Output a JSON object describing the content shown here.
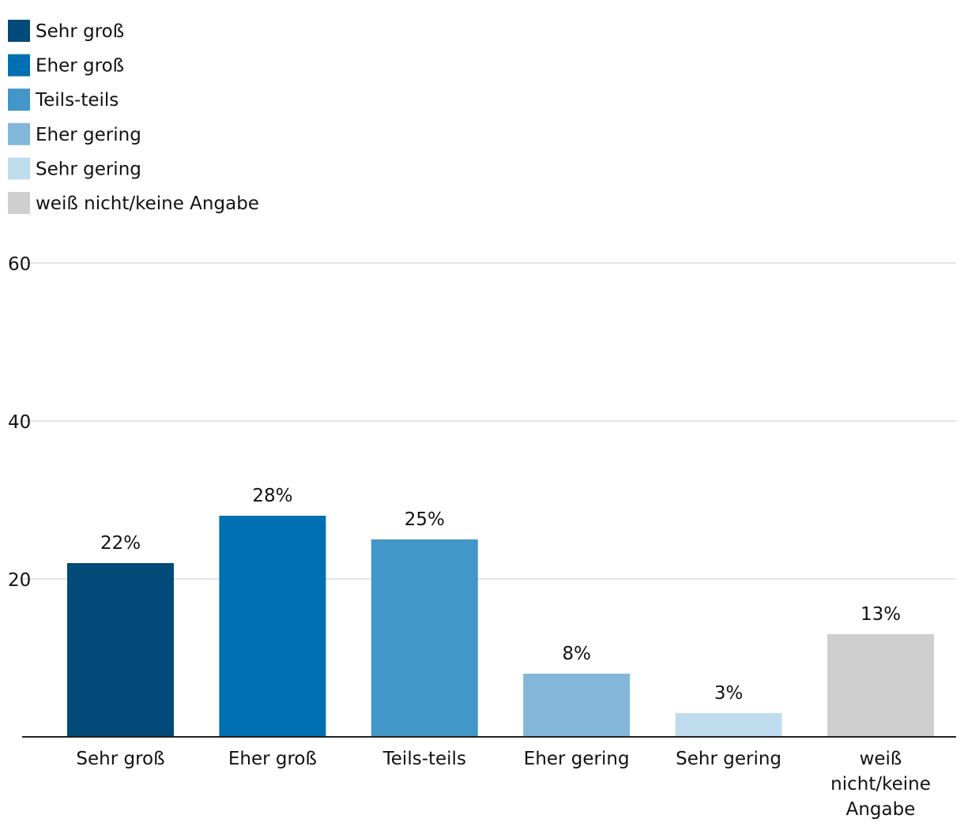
{
  "chart_data": {
    "type": "bar",
    "title": "",
    "xlabel": "",
    "ylabel": "",
    "ylim": [
      0,
      60
    ],
    "yticks": [
      20,
      40,
      60
    ],
    "grid": true,
    "legend_position": "top-left",
    "categories": [
      [
        "Sehr groß"
      ],
      [
        "Eher groß"
      ],
      [
        "Teils-teils"
      ],
      [
        "Eher gering"
      ],
      [
        "Sehr gering"
      ],
      [
        "weiß",
        "nicht/keine",
        "Angabe"
      ]
    ],
    "values": [
      22,
      28,
      25,
      8,
      3,
      13
    ],
    "value_labels": [
      "22%",
      "28%",
      "25%",
      "8%",
      "3%",
      "13%"
    ],
    "colors": [
      "#024a77",
      "#0070b2",
      "#4296c8",
      "#82b7da",
      "#bfdcee",
      "#cfcfcf"
    ],
    "legend": [
      {
        "label": "Sehr groß",
        "color": "#024a77"
      },
      {
        "label": "Eher groß",
        "color": "#0070b2"
      },
      {
        "label": "Teils-teils",
        "color": "#4296c8"
      },
      {
        "label": "Eher gering",
        "color": "#82b7da"
      },
      {
        "label": "Sehr gering",
        "color": "#bfdcee"
      },
      {
        "label": "weiß nicht/keine Angabe",
        "color": "#cfcfcf"
      }
    ]
  }
}
